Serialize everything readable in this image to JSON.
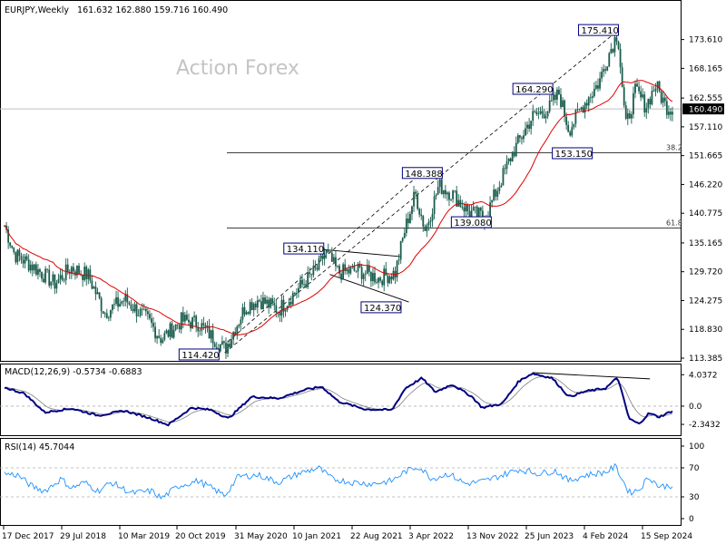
{
  "chart_data": {
    "type": "candlestick",
    "watermark": "Action Forex",
    "price_panel": {
      "title": "EURJPY,Weekly",
      "ohlc_text": "161.632 162.880 159.716 160.490",
      "last_price": "160.490",
      "ylim": [
        113.385,
        178.0
      ],
      "y_ticks": [
        "173.610",
        "168.165",
        "162.555",
        "157.110",
        "151.665",
        "146.220",
        "140.775",
        "135.165",
        "129.720",
        "124.275",
        "118.830",
        "113.385"
      ],
      "annotations": [
        {
          "label": "175.410",
          "value": 175.41,
          "t": 0.918
        },
        {
          "label": "164.290",
          "value": 164.29,
          "t": 0.82
        },
        {
          "label": "153.150",
          "value": 153.15,
          "t": 0.822
        },
        {
          "label": "148.388",
          "value": 148.388,
          "t": 0.655
        },
        {
          "label": "139.080",
          "value": 139.08,
          "t": 0.72
        },
        {
          "label": "134.110",
          "value": 134.11,
          "t": 0.478
        },
        {
          "label": "124.370",
          "value": 124.37,
          "t": 0.588
        },
        {
          "label": "114.420",
          "value": 114.42,
          "t": 0.327
        }
      ],
      "fib_levels": [
        {
          "label": "38.2",
          "value": 152.2
        },
        {
          "label": "61.8",
          "value": 138.0
        }
      ],
      "ma_label": "",
      "key_points": [
        {
          "t": 0.0,
          "v": 138.5
        },
        {
          "t": 0.015,
          "v": 133.0
        },
        {
          "t": 0.04,
          "v": 131.0
        },
        {
          "t": 0.075,
          "v": 127.5
        },
        {
          "t": 0.1,
          "v": 130.5
        },
        {
          "t": 0.125,
          "v": 129.0
        },
        {
          "t": 0.15,
          "v": 122.0
        },
        {
          "t": 0.18,
          "v": 124.5
        },
        {
          "t": 0.215,
          "v": 120.5
        },
        {
          "t": 0.235,
          "v": 117.0
        },
        {
          "t": 0.265,
          "v": 120.5
        },
        {
          "t": 0.29,
          "v": 120.0
        },
        {
          "t": 0.33,
          "v": 115.0
        },
        {
          "t": 0.36,
          "v": 123.0
        },
        {
          "t": 0.38,
          "v": 124.5
        },
        {
          "t": 0.41,
          "v": 122.5
        },
        {
          "t": 0.44,
          "v": 126.5
        },
        {
          "t": 0.47,
          "v": 130.5
        },
        {
          "t": 0.48,
          "v": 133.5
        },
        {
          "t": 0.5,
          "v": 129.5
        },
        {
          "t": 0.53,
          "v": 130.0
        },
        {
          "t": 0.56,
          "v": 128.5
        },
        {
          "t": 0.585,
          "v": 129.5
        },
        {
          "t": 0.6,
          "v": 138.0
        },
        {
          "t": 0.615,
          "v": 144.5
        },
        {
          "t": 0.63,
          "v": 137.5
        },
        {
          "t": 0.65,
          "v": 146.0
        },
        {
          "t": 0.67,
          "v": 144.5
        },
        {
          "t": 0.695,
          "v": 141.0
        },
        {
          "t": 0.72,
          "v": 140.0
        },
        {
          "t": 0.74,
          "v": 146.0
        },
        {
          "t": 0.76,
          "v": 152.0
        },
        {
          "t": 0.79,
          "v": 159.0
        },
        {
          "t": 0.815,
          "v": 160.5
        },
        {
          "t": 0.83,
          "v": 163.5
        },
        {
          "t": 0.845,
          "v": 156.5
        },
        {
          "t": 0.865,
          "v": 161.0
        },
        {
          "t": 0.89,
          "v": 165.5
        },
        {
          "t": 0.905,
          "v": 171.0
        },
        {
          "t": 0.918,
          "v": 175.0
        },
        {
          "t": 0.93,
          "v": 157.0
        },
        {
          "t": 0.945,
          "v": 164.0
        },
        {
          "t": 0.96,
          "v": 161.0
        },
        {
          "t": 0.975,
          "v": 165.0
        },
        {
          "t": 0.99,
          "v": 161.0
        },
        {
          "t": 1.0,
          "v": 160.5
        }
      ]
    },
    "macd_panel": {
      "title": "MACD(12,26,9) -0.5734 -0.6883",
      "y_ticks": [
        "4.0372",
        "0.0",
        "-2.3432"
      ],
      "ylim": [
        -3.5,
        5.0
      ],
      "key_points": [
        {
          "t": 0.0,
          "v": 2.4
        },
        {
          "t": 0.03,
          "v": 1.6
        },
        {
          "t": 0.06,
          "v": -0.8
        },
        {
          "t": 0.1,
          "v": -0.3
        },
        {
          "t": 0.14,
          "v": -1.2
        },
        {
          "t": 0.18,
          "v": -0.6
        },
        {
          "t": 0.22,
          "v": -1.6
        },
        {
          "t": 0.245,
          "v": -2.4
        },
        {
          "t": 0.28,
          "v": -0.2
        },
        {
          "t": 0.31,
          "v": -0.5
        },
        {
          "t": 0.335,
          "v": -1.6
        },
        {
          "t": 0.37,
          "v": 1.2
        },
        {
          "t": 0.41,
          "v": 1.0
        },
        {
          "t": 0.45,
          "v": 2.1
        },
        {
          "t": 0.475,
          "v": 2.5
        },
        {
          "t": 0.5,
          "v": 0.6
        },
        {
          "t": 0.54,
          "v": -0.4
        },
        {
          "t": 0.58,
          "v": -0.5
        },
        {
          "t": 0.6,
          "v": 2.3
        },
        {
          "t": 0.625,
          "v": 3.6
        },
        {
          "t": 0.645,
          "v": 1.8
        },
        {
          "t": 0.67,
          "v": 2.8
        },
        {
          "t": 0.7,
          "v": 1.2
        },
        {
          "t": 0.715,
          "v": -0.2
        },
        {
          "t": 0.745,
          "v": 0.3
        },
        {
          "t": 0.77,
          "v": 3.2
        },
        {
          "t": 0.79,
          "v": 4.2
        },
        {
          "t": 0.82,
          "v": 3.6
        },
        {
          "t": 0.845,
          "v": 1.2
        },
        {
          "t": 0.87,
          "v": 1.9
        },
        {
          "t": 0.9,
          "v": 2.3
        },
        {
          "t": 0.918,
          "v": 3.7
        },
        {
          "t": 0.935,
          "v": -1.6
        },
        {
          "t": 0.95,
          "v": -2.3
        },
        {
          "t": 0.965,
          "v": -0.9
        },
        {
          "t": 0.98,
          "v": -1.4
        },
        {
          "t": 1.0,
          "v": -0.6
        }
      ],
      "divergence": [
        {
          "t": 0.79,
          "v": 4.3
        },
        {
          "t": 0.965,
          "v": 3.5
        }
      ]
    },
    "rsi_panel": {
      "title": "RSI(14) 45.7044",
      "y_ticks": [
        "100",
        "70",
        "30",
        "0"
      ],
      "ylim": [
        0,
        100
      ],
      "key_points": [
        {
          "t": 0.0,
          "v": 62
        },
        {
          "t": 0.02,
          "v": 60
        },
        {
          "t": 0.04,
          "v": 45
        },
        {
          "t": 0.06,
          "v": 38
        },
        {
          "t": 0.085,
          "v": 55
        },
        {
          "t": 0.1,
          "v": 42
        },
        {
          "t": 0.12,
          "v": 50
        },
        {
          "t": 0.14,
          "v": 38
        },
        {
          "t": 0.16,
          "v": 50
        },
        {
          "t": 0.19,
          "v": 35
        },
        {
          "t": 0.22,
          "v": 38
        },
        {
          "t": 0.235,
          "v": 28
        },
        {
          "t": 0.26,
          "v": 45
        },
        {
          "t": 0.29,
          "v": 52
        },
        {
          "t": 0.31,
          "v": 42
        },
        {
          "t": 0.33,
          "v": 32
        },
        {
          "t": 0.35,
          "v": 58
        },
        {
          "t": 0.38,
          "v": 60
        },
        {
          "t": 0.41,
          "v": 50
        },
        {
          "t": 0.44,
          "v": 62
        },
        {
          "t": 0.47,
          "v": 70
        },
        {
          "t": 0.49,
          "v": 55
        },
        {
          "t": 0.52,
          "v": 50
        },
        {
          "t": 0.55,
          "v": 48
        },
        {
          "t": 0.58,
          "v": 52
        },
        {
          "t": 0.6,
          "v": 65
        },
        {
          "t": 0.62,
          "v": 72
        },
        {
          "t": 0.64,
          "v": 55
        },
        {
          "t": 0.665,
          "v": 62
        },
        {
          "t": 0.69,
          "v": 48
        },
        {
          "t": 0.72,
          "v": 52
        },
        {
          "t": 0.745,
          "v": 60
        },
        {
          "t": 0.77,
          "v": 68
        },
        {
          "t": 0.8,
          "v": 62
        },
        {
          "t": 0.825,
          "v": 66
        },
        {
          "t": 0.845,
          "v": 52
        },
        {
          "t": 0.87,
          "v": 60
        },
        {
          "t": 0.9,
          "v": 64
        },
        {
          "t": 0.915,
          "v": 72
        },
        {
          "t": 0.935,
          "v": 36
        },
        {
          "t": 0.95,
          "v": 40
        },
        {
          "t": 0.965,
          "v": 58
        },
        {
          "t": 0.98,
          "v": 44
        },
        {
          "t": 1.0,
          "v": 46
        }
      ]
    },
    "x_ticks": [
      "17 Dec 2017",
      "29 Jul 2018",
      "10 Mar 2019",
      "20 Oct 2019",
      "31 May 2020",
      "10 Jan 2021",
      "22 Aug 2021",
      "3 Apr 2022",
      "13 Nov 2022",
      "25 Jun 2023",
      "4 Feb 2024",
      "15 Sep 2024"
    ],
    "colors": {
      "candle": "#1a5c4c",
      "ma": "#e00000",
      "macd": "#000080",
      "signal": "#808080",
      "rsi": "#1e90ff",
      "annotation_box": "#000080"
    }
  }
}
